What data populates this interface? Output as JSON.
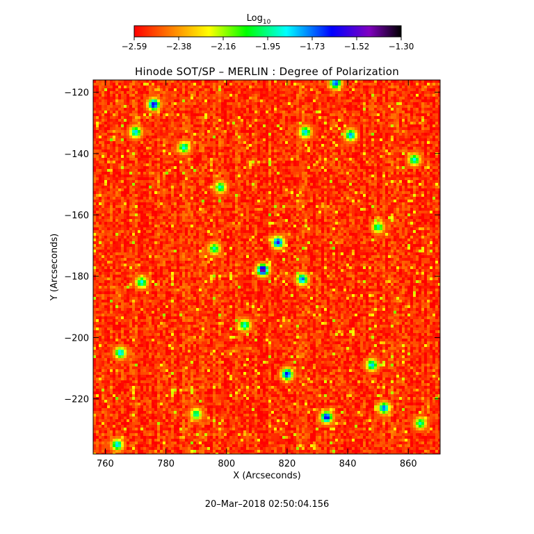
{
  "chart_data": {
    "type": "heatmap",
    "title": "Hinode SOT/SP – MERLIN : Degree of Polarization",
    "xlabel": "X (Arcseconds)",
    "ylabel": "Y (Arcseconds)",
    "xlim": [
      756,
      870.5
    ],
    "ylim": [
      -238,
      -116
    ],
    "xticks": [
      760,
      780,
      800,
      820,
      840,
      860
    ],
    "yticks": [
      -120,
      -140,
      -160,
      -180,
      -200,
      -220
    ],
    "colorbar": {
      "label": "Log",
      "label_subscript": "10",
      "ticks": [
        "−2.59",
        "−2.38",
        "−2.16",
        "−1.95",
        "−1.73",
        "−1.52",
        "−1.30"
      ],
      "range": [
        -2.59,
        -1.3
      ],
      "colormap": [
        "#ff0000",
        "#ff8000",
        "#ffff00",
        "#00ff00",
        "#00ffff",
        "#0000ff",
        "#8000c0",
        "#000000"
      ]
    },
    "base_level": -2.52,
    "features": [
      {
        "x": 812,
        "y": -178,
        "value": -1.35
      },
      {
        "x": 817,
        "y": -169,
        "value": -1.55
      },
      {
        "x": 776,
        "y": -124,
        "value": -1.55
      },
      {
        "x": 770,
        "y": -133,
        "value": -1.8
      },
      {
        "x": 765,
        "y": -205,
        "value": -1.8
      },
      {
        "x": 820,
        "y": -212,
        "value": -1.6
      },
      {
        "x": 833,
        "y": -226,
        "value": -1.55
      },
      {
        "x": 841,
        "y": -134,
        "value": -1.75
      },
      {
        "x": 836,
        "y": -117,
        "value": -1.65
      },
      {
        "x": 825,
        "y": -181,
        "value": -1.7
      },
      {
        "x": 848,
        "y": -209,
        "value": -1.8
      },
      {
        "x": 862,
        "y": -142,
        "value": -1.85
      },
      {
        "x": 786,
        "y": -138,
        "value": -1.85
      },
      {
        "x": 796,
        "y": -171,
        "value": -1.9
      },
      {
        "x": 806,
        "y": -196,
        "value": -1.85
      },
      {
        "x": 850,
        "y": -164,
        "value": -1.9
      },
      {
        "x": 826,
        "y": -133,
        "value": -1.8
      },
      {
        "x": 798,
        "y": -151,
        "value": -1.9
      },
      {
        "x": 772,
        "y": -182,
        "value": -1.85
      },
      {
        "x": 864,
        "y": -228,
        "value": -1.9
      },
      {
        "x": 852,
        "y": -223,
        "value": -1.7
      },
      {
        "x": 790,
        "y": -225,
        "value": -1.9
      },
      {
        "x": 764,
        "y": -235,
        "value": -1.8
      }
    ]
  },
  "timestamp": "20–Mar–2018 02:50:04.156"
}
